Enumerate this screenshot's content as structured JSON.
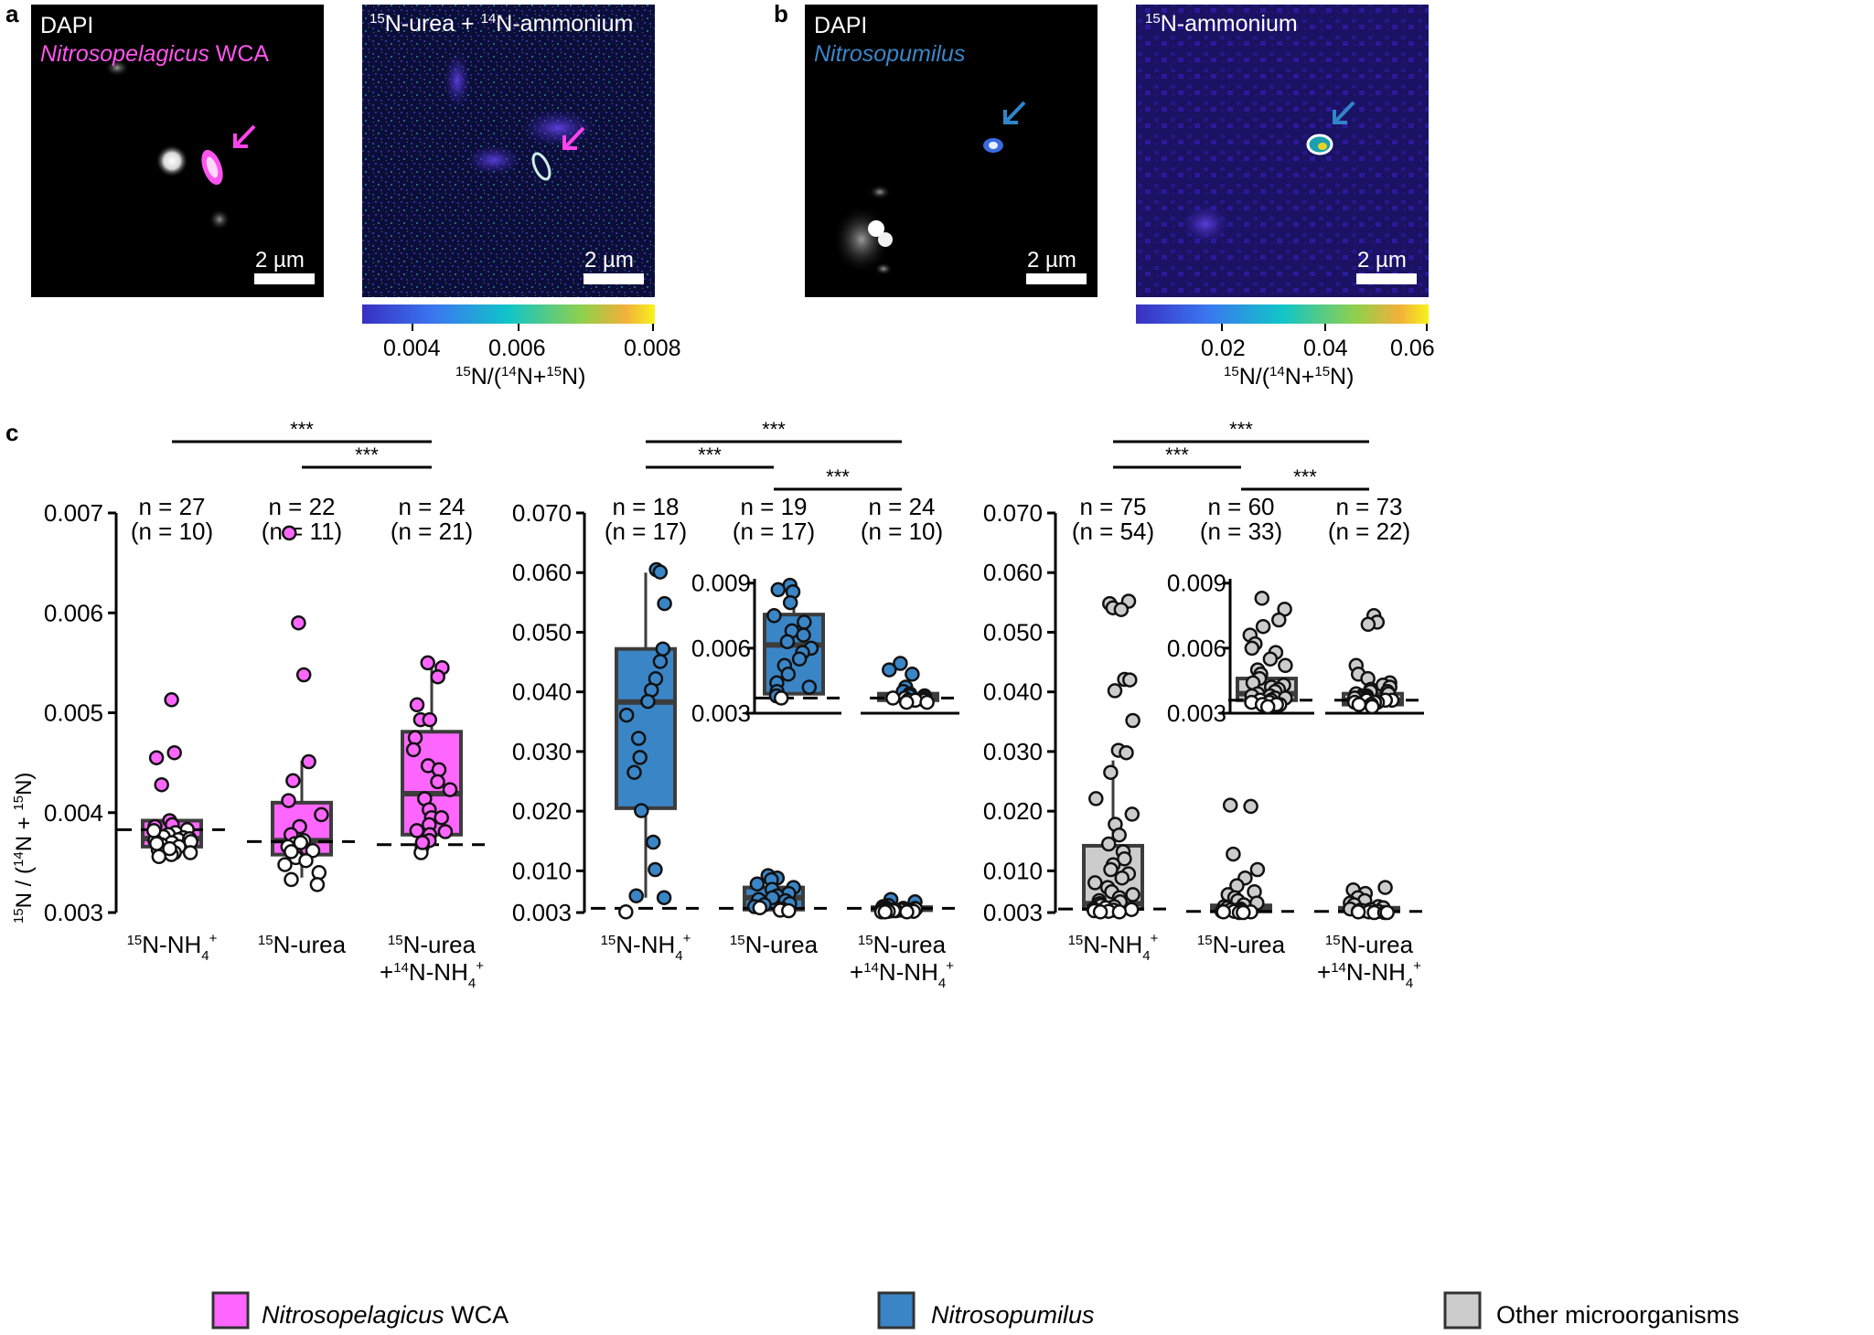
{
  "panel_labels": {
    "a": "a",
    "b": "b",
    "c": "c"
  },
  "panel_a": {
    "left": {
      "channel": "DAPI",
      "organism_italic": "Nitrosopelagicus",
      "organism_rest": " WCA",
      "scale": "2 µm"
    },
    "right": {
      "title_parts": [
        "15",
        "N-urea + ",
        "14",
        "N-ammonium"
      ],
      "scale": "2 µm",
      "colorbar_ticks": [
        "0.004",
        "0.006",
        "0.008"
      ],
      "colorbar_label": [
        "15",
        "N/(",
        "14",
        "N+",
        "15",
        "N)"
      ]
    }
  },
  "panel_b": {
    "left": {
      "channel": "DAPI",
      "organism_italic": "Nitrosopumilus",
      "scale": "2 µm"
    },
    "right": {
      "title_parts": [
        "15",
        "N-ammonium"
      ],
      "scale": "2 µm",
      "colorbar_ticks": [
        "0.02",
        "0.04",
        "0.06"
      ],
      "colorbar_label": [
        "15",
        "N/(",
        "14",
        "N+",
        "15",
        "N)"
      ]
    }
  },
  "colors": {
    "magenta": "#ff66ff",
    "arrow_magenta": "#ff44ee",
    "blue": "#3a85c6",
    "arrow_blue": "#2f86c8",
    "grey": "#cccccc",
    "box_edge": "#3c3c3c"
  },
  "y_axis_label": [
    "15",
    "N / (",
    "14",
    "N + ",
    "15",
    "N)"
  ],
  "significance": "***",
  "chart_data": [
    {
      "type": "box-strip",
      "group": "Nitrosopelagicus WCA",
      "ylim": [
        0.003,
        0.007
      ],
      "yticks": [
        "0.007",
        "0.006",
        "0.005",
        "0.004",
        "0.003"
      ],
      "categories": [
        "15N-NH4+",
        "15N-urea",
        "15N-urea +14N-NH4+"
      ],
      "n_labels": [
        [
          "n = 27",
          "(n = 10)"
        ],
        [
          "n = 22",
          "(n = 11)"
        ],
        [
          "n = 24",
          "(n = 21)"
        ]
      ],
      "boxes": [
        {
          "q1": 0.00366,
          "median": 0.00374,
          "q3": 0.00392,
          "whisker_low": null,
          "whisker_high": null,
          "background": 0.00383
        },
        {
          "q1": 0.00358,
          "median": 0.00372,
          "q3": 0.0041,
          "whisker_low": 0.00335,
          "whisker_high": 0.00452,
          "background": 0.00371
        },
        {
          "q1": 0.00378,
          "median": 0.00419,
          "q3": 0.00481,
          "whisker_low": null,
          "whisker_high": 0.0055,
          "background": 0.00368
        }
      ],
      "significance_pairs": [
        [
          0,
          2
        ],
        [
          1,
          2
        ]
      ]
    },
    {
      "type": "box-strip",
      "group": "Nitrosopumilus",
      "ylim": [
        0.003,
        0.07
      ],
      "yticks": [
        "0.070",
        "0.060",
        "0.050",
        "0.040",
        "0.030",
        "0.020",
        "0.010",
        "0.003"
      ],
      "categories": [
        "15N-NH4+",
        "15N-urea",
        "15N-urea +14N-NH4+"
      ],
      "n_labels": [
        [
          "n = 18",
          "(n = 17)"
        ],
        [
          "n = 19",
          "(n = 17)"
        ],
        [
          "n = 24",
          "(n = 10)"
        ]
      ],
      "boxes": [
        {
          "q1": 0.0205,
          "median": 0.0383,
          "q3": 0.0472,
          "whisker_low": 0.0055,
          "whisker_high": 0.06,
          "background": 0.0037
        },
        {
          "q1": 0.0035,
          "median": 0.0055,
          "q3": 0.0072,
          "whisker_low": null,
          "whisker_high": null,
          "background": 0.0037
        },
        {
          "q1": 0.0034,
          "median": 0.0037,
          "q3": 0.0039,
          "whisker_low": null,
          "whisker_high": null,
          "background": 0.0037
        }
      ],
      "inset": {
        "ylim": [
          0.003,
          0.0092
        ],
        "yticks": [
          "0.009",
          "0.006",
          "0.003"
        ],
        "boxes": [
          {
            "q1": 0.0039,
            "median": 0.00615,
            "q3": 0.00755,
            "whisker_high": 0.009,
            "background": 0.0037
          },
          {
            "q1": 0.0036,
            "median": 0.00375,
            "q3": 0.0039,
            "whisker_high": null,
            "background": 0.0037
          }
        ]
      },
      "significance_pairs": [
        [
          0,
          2
        ],
        [
          0,
          1
        ],
        [
          1,
          2
        ]
      ]
    },
    {
      "type": "box-strip",
      "group": "Other microorganisms",
      "ylim": [
        0.003,
        0.07
      ],
      "yticks": [
        "0.070",
        "0.060",
        "0.050",
        "0.040",
        "0.030",
        "0.020",
        "0.010",
        "0.003"
      ],
      "categories": [
        "15N-NH4+",
        "15N-urea",
        "15N-urea +14N-NH4+"
      ],
      "n_labels": [
        [
          "n = 75",
          "(n = 54)"
        ],
        [
          "n = 60",
          "(n = 33)"
        ],
        [
          "n = 73",
          "(n = 22)"
        ]
      ],
      "boxes": [
        {
          "q1": 0.0036,
          "median": 0.0045,
          "q3": 0.0142,
          "whisker_low": null,
          "whisker_high": 0.0285,
          "background": 0.0036
        },
        {
          "q1": 0.0032,
          "median": 0.0036,
          "q3": 0.0042,
          "whisker_low": null,
          "whisker_high": null,
          "background": 0.0032
        },
        {
          "q1": 0.0032,
          "median": 0.0035,
          "q3": 0.0038,
          "whisker_low": null,
          "whisker_high": null,
          "background": 0.0032
        }
      ],
      "inset": {
        "ylim": [
          0.003,
          0.0092
        ],
        "yticks": [
          "0.009",
          "0.006",
          "0.003"
        ],
        "boxes": [
          {
            "q1": 0.0036,
            "median": 0.0039,
            "q3": 0.0046,
            "whisker_high": null,
            "background": 0.0036
          },
          {
            "q1": 0.0034,
            "median": 0.0036,
            "q3": 0.0039,
            "whisker_high": null,
            "background": 0.0036
          }
        ]
      },
      "significance_pairs": [
        [
          0,
          2
        ],
        [
          0,
          1
        ],
        [
          1,
          2
        ]
      ]
    }
  ],
  "legend": [
    {
      "label_italic": "Nitrosopelagicus",
      "label_rest": " WCA",
      "color": "#ff66ff"
    },
    {
      "label_italic": "Nitrosopumilus",
      "label_rest": "",
      "color": "#3a85c6"
    },
    {
      "label_italic": "",
      "label_rest": "Other microorganisms",
      "color": "#cccccc"
    }
  ]
}
